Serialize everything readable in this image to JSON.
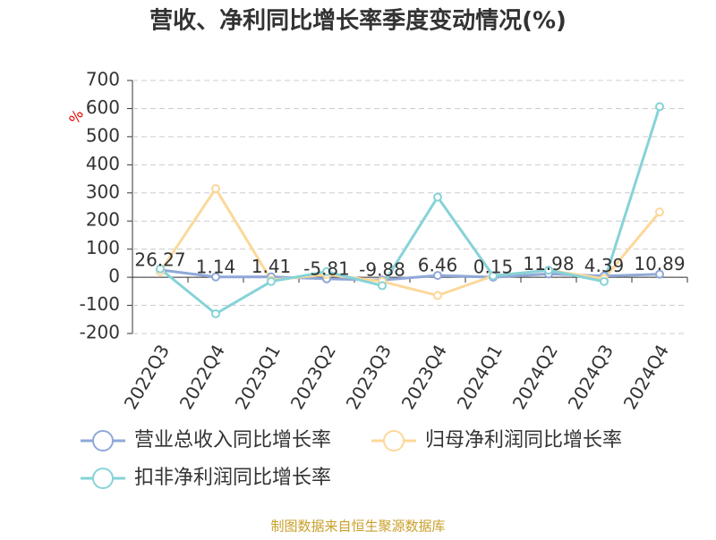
{
  "chart_data": {
    "type": "line",
    "title": "营收、净利同比增长率季度变动情况(%)",
    "y_label": "%",
    "source": "制图数据来自恒生聚源数据库",
    "categories": [
      "2022Q3",
      "2022Q4",
      "2023Q1",
      "2023Q2",
      "2023Q3",
      "2023Q4",
      "2024Q1",
      "2024Q2",
      "2024Q3",
      "2024Q4"
    ],
    "series": [
      {
        "name": "营业总收入同比增长率",
        "color": "#8fa8d8",
        "values": [
          26.27,
          1.14,
          1.41,
          -5.81,
          -9.88,
          6.46,
          0.15,
          11.98,
          4.39,
          10.89
        ],
        "show_labels": true
      },
      {
        "name": "归母净利润同比增长率",
        "color": "#fcd89a",
        "values": [
          20,
          315,
          -10,
          10,
          -15,
          -65,
          5,
          25,
          -5,
          232
        ],
        "show_labels": false
      },
      {
        "name": "扣非净利润同比增长率",
        "color": "#86d3d8",
        "values": [
          30,
          -130,
          -15,
          20,
          -30,
          285,
          5,
          25,
          -15,
          607
        ],
        "show_labels": false
      }
    ],
    "ylim": [
      -200,
      700
    ],
    "yticks": [
      -200,
      -100,
      0,
      100,
      200,
      300,
      400,
      500,
      600,
      700
    ],
    "grid": true
  }
}
